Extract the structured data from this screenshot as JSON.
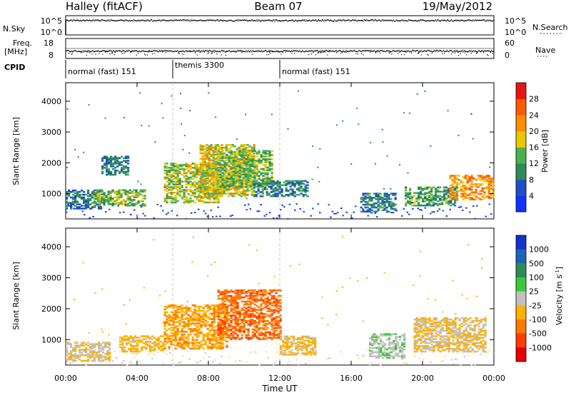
{
  "header": {
    "station": "Halley (fitACF)",
    "beam": "Beam 07",
    "date": "19/May/2012"
  },
  "strips": {
    "nsky_label": "N.Sky",
    "nsky_ticks": [
      "10^5",
      "10^0"
    ],
    "nsearch_label": "N.Search",
    "nsearch_ticks": [
      "10^5",
      "10^0"
    ],
    "freq_label_1": "Freq.",
    "freq_label_2": "[MHz]",
    "freq_ticks": [
      "18",
      "8"
    ],
    "nave_label": "Nave",
    "nave_ticks": [
      "60",
      "0"
    ],
    "cpid_label": "CPID",
    "cpid_segments": [
      {
        "label": "normal (fast) 151",
        "start_hr": 0,
        "end_hr": 6
      },
      {
        "label": "themis 3300",
        "start_hr": 6,
        "end_hr": 12
      },
      {
        "label": "normal (fast) 151",
        "start_hr": 12,
        "end_hr": 24
      }
    ]
  },
  "axes": {
    "ylabel": "Slant Range [km]",
    "xlabel": "Time UT",
    "xticks": [
      "00:00",
      "04:00",
      "08:00",
      "12:00",
      "16:00",
      "20:00",
      "00:00"
    ],
    "yticks": [
      "1000",
      "2000",
      "3000",
      "4000"
    ]
  },
  "power_scale": {
    "label": "Power [dB]",
    "ticks": [
      "4",
      "8",
      "12",
      "16",
      "20",
      "24",
      "28"
    ],
    "colors": [
      "#1432ff",
      "#1e4fc8",
      "#2e8b57",
      "#4bb050",
      "#e8c800",
      "#ff8c00",
      "#ff5a00",
      "#e81414"
    ]
  },
  "velocity_scale": {
    "label": "Velocity [m s",
    "label_sup": "-1",
    "label_end": "]",
    "ticks": [
      "1000",
      "500",
      "100",
      "25",
      "-25",
      "-100",
      "-500",
      "-1000"
    ],
    "colors": [
      "#1432c8",
      "#1e64b4",
      "#2e8b57",
      "#3cc83c",
      "#c0c0c0",
      "#ffb000",
      "#ff7800",
      "#ff3c00",
      "#e80000"
    ]
  },
  "chart_data": {
    "type": "heatmap",
    "title": "Halley (fitACF)",
    "xlabel": "Time UT",
    "ylabel": "Slant Range [km]",
    "xlim": [
      0,
      24
    ],
    "ylim": [
      180,
      4600
    ],
    "panels": [
      {
        "name": "Power [dB]",
        "value_range": [
          0,
          32
        ],
        "echo_regions": [
          {
            "t": [
              0.0,
              2.0
            ],
            "r": [
              500,
              1100
            ],
            "v": 8
          },
          {
            "t": [
              1.5,
              4.5
            ],
            "r": [
              600,
              1100
            ],
            "v": 14
          },
          {
            "t": [
              2.0,
              3.5
            ],
            "r": [
              1600,
              2200
            ],
            "v": 9
          },
          {
            "t": [
              5.5,
              8.5
            ],
            "r": [
              700,
              2000
            ],
            "v": 16
          },
          {
            "t": [
              7.5,
              10.5
            ],
            "r": [
              900,
              2600
            ],
            "v": 18
          },
          {
            "t": [
              8.5,
              11.5
            ],
            "r": [
              1200,
              2400
            ],
            "v": 14
          },
          {
            "t": [
              10.5,
              13.5
            ],
            "r": [
              900,
              1400
            ],
            "v": 10
          },
          {
            "t": [
              16.5,
              18.5
            ],
            "r": [
              400,
              1000
            ],
            "v": 9
          },
          {
            "t": [
              19.0,
              22.0
            ],
            "r": [
              600,
              1200
            ],
            "v": 12
          },
          {
            "t": [
              21.5,
              24.0
            ],
            "r": [
              800,
              1600
            ],
            "v": 22
          }
        ]
      },
      {
        "name": "Velocity [m s-1]",
        "value_range": [
          -1000,
          1000
        ],
        "echo_regions": [
          {
            "t": [
              0.0,
              2.5
            ],
            "r": [
              300,
              900
            ],
            "v": -100
          },
          {
            "t": [
              3.0,
              5.5
            ],
            "r": [
              600,
              1100
            ],
            "v": -200
          },
          {
            "t": [
              5.5,
              9.0
            ],
            "r": [
              700,
              2100
            ],
            "v": -300
          },
          {
            "t": [
              8.5,
              12.0
            ],
            "r": [
              1000,
              2600
            ],
            "v": -500
          },
          {
            "t": [
              12.0,
              14.0
            ],
            "r": [
              500,
              1100
            ],
            "v": -150
          },
          {
            "t": [
              17.0,
              19.0
            ],
            "r": [
              400,
              1200
            ],
            "v": 50
          },
          {
            "t": [
              19.5,
              23.5
            ],
            "r": [
              600,
              1700
            ],
            "v": -120
          }
        ]
      }
    ]
  }
}
